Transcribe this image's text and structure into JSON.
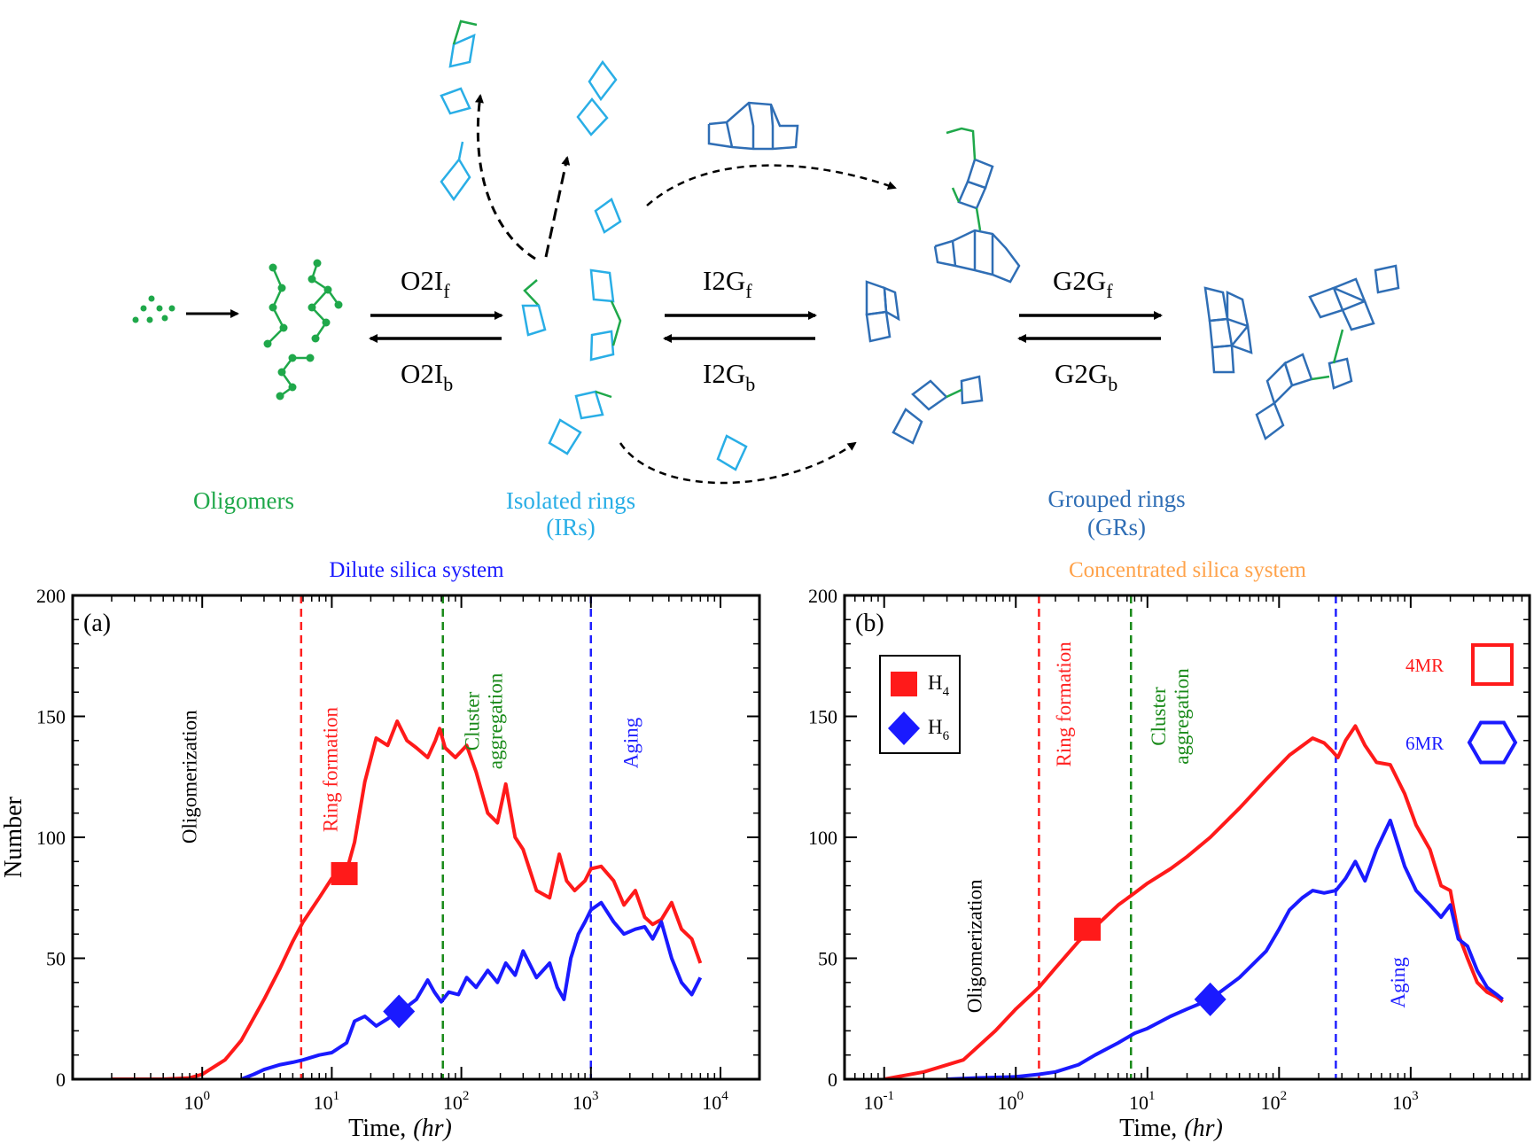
{
  "scheme": {
    "labels": {
      "oligomers": "Oligomers",
      "isolated_l1": "Isolated rings",
      "isolated_l2": "(IRs)",
      "grouped_l1": "Grouped rings",
      "grouped_l2": "(GRs)"
    },
    "arrows": {
      "o2i_f": {
        "base": "O2I",
        "sub": "f"
      },
      "o2i_b": {
        "base": "O2I",
        "sub": "b"
      },
      "i2g_f": {
        "base": "I2G",
        "sub": "f"
      },
      "i2g_b": {
        "base": "I2G",
        "sub": "b"
      },
      "g2g_f": {
        "base": "G2G",
        "sub": "f"
      },
      "g2g_b": {
        "base": "G2G",
        "sub": "b"
      }
    },
    "colors": {
      "oligomer": "#1fa84a",
      "isolated": "#29aee6",
      "grouped": "#2f6eb5"
    }
  },
  "chart_data": [
    {
      "type": "line",
      "panel_label": "(a)",
      "title": "Dilute silica system",
      "title_color": "#1a1aff",
      "xlabel": "Time,",
      "xlabel_unit": "(hr)",
      "ylabel": "Number",
      "xscale": "log",
      "xlim": [
        0.1,
        20000
      ],
      "ylim": [
        0,
        200
      ],
      "xticks": [
        {
          "value": 1,
          "base": "10",
          "exp": "0"
        },
        {
          "value": 10,
          "base": "10",
          "exp": "1"
        },
        {
          "value": 100,
          "base": "10",
          "exp": "2"
        },
        {
          "value": 1000,
          "base": "10",
          "exp": "3"
        },
        {
          "value": 10000,
          "base": "10",
          "exp": "4"
        }
      ],
      "yticks": [
        "0",
        "50",
        "100",
        "150",
        "200"
      ],
      "vlines": [
        {
          "x": 5.8,
          "color": "#ff2020"
        },
        {
          "x": 72,
          "color": "#1a8a1a"
        },
        {
          "x": 1000,
          "color": "#2020ff"
        }
      ],
      "annotations": [
        {
          "lines": [
            "Oligomerization"
          ],
          "color": "#000000",
          "x": 0.9,
          "y": 125
        },
        {
          "lines": [
            "Ring formation"
          ],
          "color": "#ff2020",
          "x": 11,
          "y": 128
        },
        {
          "lines": [
            "Cluster",
            "aggregation"
          ],
          "color": "#1a8a1a",
          "x": 150,
          "y": 148
        },
        {
          "lines": [
            "Aging"
          ],
          "color": "#2020ff",
          "x": 2300,
          "y": 139
        }
      ],
      "series": [
        {
          "marker": "square",
          "color": "#ff1a1a",
          "marker_at": [
            12.5,
            85
          ],
          "x": [
            0.2,
            0.5,
            0.8,
            1.0,
            1.5,
            2,
            3,
            4,
            5,
            6,
            8,
            10,
            13,
            15,
            18,
            22,
            27,
            32,
            38,
            45,
            55,
            63,
            68,
            75,
            90,
            110,
            130,
            160,
            190,
            220,
            260,
            300,
            380,
            480,
            570,
            650,
            750,
            900,
            1000,
            1200,
            1500,
            1800,
            2200,
            2600,
            3000,
            3500,
            4200,
            5000,
            6000,
            7000
          ],
          "y": [
            0,
            0,
            0.5,
            2,
            8,
            16,
            33,
            46,
            57,
            65,
            75,
            83,
            86,
            98,
            123,
            141,
            138,
            148,
            140,
            137,
            133,
            140,
            145,
            137,
            133,
            138,
            127,
            110,
            106,
            122,
            100,
            95,
            78,
            75,
            93,
            82,
            78,
            82,
            87,
            88,
            82,
            72,
            78,
            67,
            64,
            66,
            73,
            62,
            58,
            48
          ]
        },
        {
          "marker": "diamond",
          "color": "#1a1aff",
          "marker_at": [
            33,
            28
          ],
          "x": [
            2,
            2.5,
            3,
            4,
            5,
            6,
            8,
            10,
            13,
            15,
            18,
            22,
            27,
            32,
            38,
            45,
            55,
            62,
            70,
            80,
            95,
            110,
            130,
            160,
            190,
            220,
            260,
            300,
            380,
            480,
            550,
            620,
            700,
            800,
            900,
            1000,
            1200,
            1500,
            1800,
            2200,
            2600,
            3000,
            3500,
            4200,
            5000,
            6000,
            7000
          ],
          "y": [
            0,
            2,
            4,
            6,
            7,
            8,
            10,
            11,
            15,
            24,
            26,
            22,
            25,
            28,
            30,
            33,
            41,
            36,
            32,
            36,
            35,
            42,
            38,
            45,
            40,
            48,
            43,
            53,
            42,
            48,
            38,
            33,
            50,
            60,
            65,
            70,
            73,
            65,
            60,
            62,
            63,
            58,
            65,
            50,
            40,
            35,
            42
          ]
        }
      ]
    },
    {
      "type": "line",
      "panel_label": "(b)",
      "title": "Concentrated silica system",
      "title_color": "#ffa24a",
      "xlabel": "Time,",
      "xlabel_unit": "(hr)",
      "ylabel": "",
      "xscale": "log",
      "xlim": [
        0.05,
        8000
      ],
      "ylim": [
        0,
        200
      ],
      "xticks": [
        {
          "value": 0.1,
          "base": "10",
          "exp": "-1"
        },
        {
          "value": 1,
          "base": "10",
          "exp": "0"
        },
        {
          "value": 10,
          "base": "10",
          "exp": "1"
        },
        {
          "value": 100,
          "base": "10",
          "exp": "2"
        },
        {
          "value": 1000,
          "base": "10",
          "exp": "3"
        }
      ],
      "yticks": [
        "0",
        "50",
        "100",
        "150",
        "200"
      ],
      "vlines": [
        {
          "x": 1.5,
          "color": "#ff2020"
        },
        {
          "x": 7.5,
          "color": "#1a8a1a"
        },
        {
          "x": 270,
          "color": "#2020ff"
        }
      ],
      "annotations": [
        {
          "lines": [
            "Oligomerization"
          ],
          "color": "#000000",
          "x": 0.55,
          "y": 55
        },
        {
          "lines": [
            "Ring formation"
          ],
          "color": "#ff2020",
          "x": 2.6,
          "y": 155
        },
        {
          "lines": [
            "Cluster",
            "aggregation"
          ],
          "color": "#1a8a1a",
          "x": 15,
          "y": 150
        },
        {
          "lines": [
            "Aging"
          ],
          "color": "#2020ff",
          "x": 900,
          "y": 40
        }
      ],
      "legend": {
        "placement": "top-left",
        "entries": [
          {
            "label": "H",
            "sub": "4",
            "marker": "square",
            "color": "#ff1a1a"
          },
          {
            "label": "H",
            "sub": "6",
            "marker": "diamond",
            "color": "#1a1aff"
          }
        ]
      },
      "ring_legend": [
        {
          "label": "4MR",
          "shape": "square",
          "color": "#ff1a1a"
        },
        {
          "label": "6MR",
          "shape": "hexagon",
          "color": "#1a1aff"
        }
      ],
      "series": [
        {
          "marker": "square",
          "color": "#ff1a1a",
          "marker_at": [
            3.5,
            62
          ],
          "x": [
            0.1,
            0.2,
            0.4,
            0.7,
            1.0,
            1.5,
            2,
            3,
            4,
            6,
            8,
            10,
            15,
            20,
            30,
            50,
            80,
            120,
            180,
            220,
            250,
            280,
            320,
            380,
            450,
            550,
            700,
            900,
            1100,
            1400,
            1700,
            2000,
            2300,
            2700,
            3200,
            3800,
            4500,
            5000
          ],
          "y": [
            0,
            3,
            8,
            20,
            29,
            38,
            46,
            57,
            63,
            72,
            77,
            81,
            87,
            92,
            100,
            112,
            124,
            134,
            141,
            139,
            136,
            133,
            140,
            146,
            138,
            131,
            130,
            118,
            105,
            95,
            80,
            78,
            60,
            50,
            40,
            36,
            34,
            32
          ]
        },
        {
          "marker": "diamond",
          "color": "#1a1aff",
          "marker_at": [
            30,
            33
          ],
          "x": [
            0.3,
            0.5,
            1.0,
            1.5,
            2,
            3,
            4,
            6,
            8,
            10,
            15,
            20,
            30,
            50,
            80,
            100,
            120,
            150,
            180,
            220,
            270,
            320,
            380,
            450,
            550,
            700,
            900,
            1100,
            1400,
            1700,
            2000,
            2300,
            2700,
            3200,
            3800,
            4500,
            5000
          ],
          "y": [
            0,
            0.5,
            1,
            2,
            3,
            6,
            10,
            15,
            19,
            21,
            26,
            29,
            33,
            42,
            53,
            62,
            70,
            75,
            78,
            77,
            78,
            83,
            90,
            82,
            95,
            107,
            88,
            78,
            72,
            67,
            72,
            58,
            55,
            45,
            38,
            35,
            33
          ]
        }
      ]
    }
  ]
}
